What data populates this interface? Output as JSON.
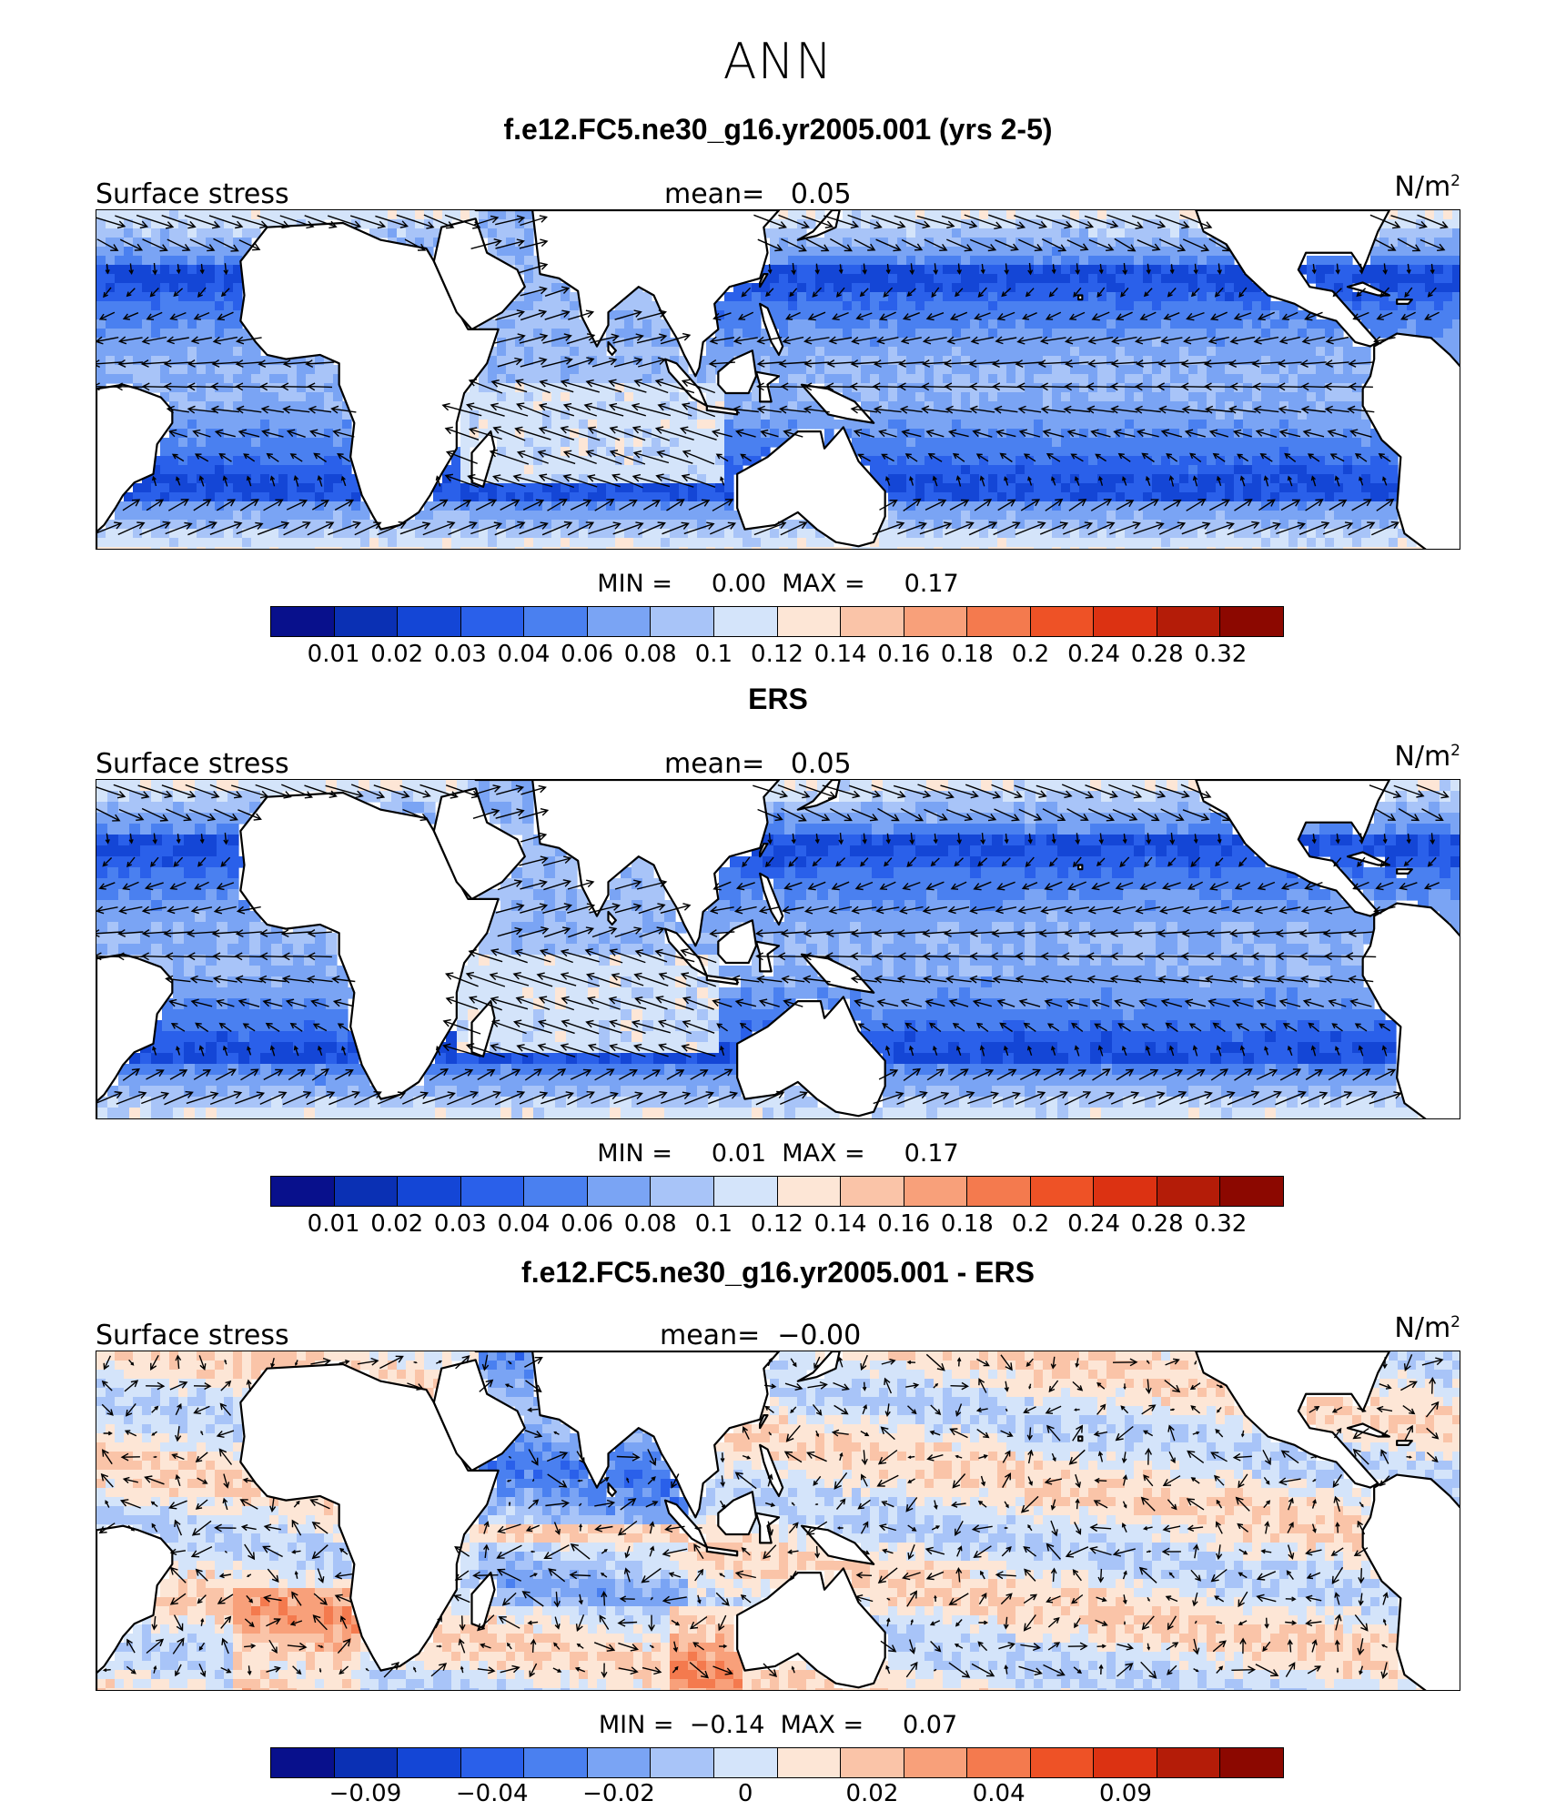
{
  "title": "ANN",
  "palette": [
    "#08108c",
    "#0a30b4",
    "#1446d6",
    "#2a60ea",
    "#4a80f0",
    "#7aa4f4",
    "#a8c4f8",
    "#d4e4fa",
    "#fde6d6",
    "#fac4a8",
    "#f8a07a",
    "#f47a4e",
    "#ee5226",
    "#dc3212",
    "#b41c08",
    "#8c0800"
  ],
  "land_color": "#ffffff",
  "coast_color": "#000000",
  "arrow_color": "#000000",
  "panels": [
    {
      "title": "f.e12.FC5.ne30_g16.yr2005.001 (yrs 2-5)",
      "variable": "Surface stress",
      "mean_label": "mean=",
      "mean_value": "0.05",
      "units": "N/m",
      "units_sup": "2",
      "min_label": "MIN =",
      "min_value": "0.00",
      "max_label": "MAX =",
      "max_value": "0.17",
      "colorbar_ticks": [
        "0.01",
        "0.02",
        "0.03",
        "0.04",
        "0.06",
        "0.08",
        "0.1",
        "0.12",
        "0.14",
        "0.16",
        "0.18",
        "0.2",
        "0.24",
        "0.28",
        "0.32"
      ],
      "field": "model"
    },
    {
      "title": "ERS",
      "variable": "Surface stress",
      "mean_label": "mean=",
      "mean_value": "0.05",
      "units": "N/m",
      "units_sup": "2",
      "min_label": "MIN =",
      "min_value": "0.01",
      "max_label": "MAX =",
      "max_value": "0.17",
      "colorbar_ticks": [
        "0.01",
        "0.02",
        "0.03",
        "0.04",
        "0.06",
        "0.08",
        "0.1",
        "0.12",
        "0.14",
        "0.16",
        "0.18",
        "0.2",
        "0.24",
        "0.28",
        "0.32"
      ],
      "field": "obs"
    },
    {
      "title": "f.e12.FC5.ne30_g16.yr2005.001 - ERS",
      "variable": "Surface stress",
      "mean_label": "mean=",
      "mean_value": "−0.00",
      "units": "N/m",
      "units_sup": "2",
      "min_label": "MIN =",
      "min_value": "−0.14",
      "max_label": "MAX =",
      "max_value": "0.07",
      "colorbar_ticks": [
        "−0.09",
        "−0.04",
        "−0.02",
        "0",
        "0.02",
        "0.04",
        "0.09"
      ],
      "field": "diff"
    }
  ]
}
